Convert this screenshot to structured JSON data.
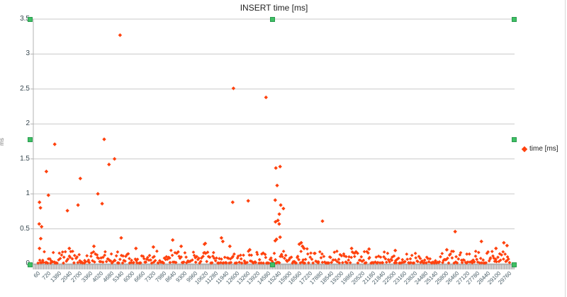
{
  "chart": {
    "selection_handle_color": "#3fc064",
    "grid_color": "#c9c9c9",
    "axis_color": "#b3b3b3"
  },
  "chart_data": {
    "type": "scatter",
    "title": "INSERT time [ms]",
    "xlabel": "",
    "ylabel": "ms",
    "series_name": "time [ms]",
    "marker": "diamond",
    "marker_color": "#ff420e",
    "legend_position": "right",
    "grid": "horizontal",
    "ylim": [
      0,
      3.5
    ],
    "x_range": [
      60,
      29760
    ],
    "y_tick_labels": [
      "3.5",
      "3",
      "2.5",
      "2",
      "1.5",
      "1",
      "0.5",
      "0"
    ],
    "x_tick_labels": [
      "60",
      "720",
      "1380",
      "2040",
      "2700",
      "3360",
      "4020",
      "4680",
      "5340",
      "6000",
      "6660",
      "7320",
      "7980",
      "8640",
      "9300",
      "9960",
      "10620",
      "11280",
      "11940",
      "12600",
      "13260",
      "13920",
      "14580",
      "15240",
      "15900",
      "16560",
      "17220",
      "17880",
      "18540",
      "19200",
      "19860",
      "20520",
      "21180",
      "21840",
      "22500",
      "23160",
      "23820",
      "24480",
      "25140",
      "25800",
      "26460",
      "27120",
      "27780",
      "28440",
      "29100",
      "29760"
    ],
    "outliers": [
      [
        5200,
        3.27
      ],
      [
        12350,
        2.51
      ],
      [
        14400,
        2.38
      ],
      [
        4200,
        1.78
      ],
      [
        1080,
        1.71
      ],
      [
        4850,
        1.5
      ],
      [
        4500,
        1.42
      ],
      [
        15290,
        1.39
      ],
      [
        15020,
        1.37
      ],
      [
        550,
        1.32
      ],
      [
        2690,
        1.22
      ],
      [
        15100,
        1.12
      ],
      [
        3800,
        1.0
      ],
      [
        680,
        0.98
      ],
      [
        14980,
        0.91
      ],
      [
        120,
        0.88
      ],
      [
        13280,
        0.9
      ],
      [
        12300,
        0.88
      ],
      [
        4070,
        0.86
      ],
      [
        2550,
        0.84
      ],
      [
        15330,
        0.84
      ],
      [
        180,
        0.8
      ],
      [
        15500,
        0.79
      ],
      [
        1880,
        0.76
      ],
      [
        15240,
        0.71
      ],
      [
        15150,
        0.62
      ],
      [
        17960,
        0.61
      ],
      [
        15000,
        0.6
      ],
      [
        15230,
        0.57
      ],
      [
        100,
        0.57
      ],
      [
        250,
        0.53
      ],
      [
        26330,
        0.46
      ],
      [
        15290,
        0.38
      ],
      [
        15060,
        0.35
      ],
      [
        200,
        0.36
      ],
      [
        5270,
        0.37
      ],
      [
        11590,
        0.37
      ],
      [
        27980,
        0.32
      ],
      [
        11680,
        0.32
      ],
      [
        14980,
        0.33
      ],
      [
        10520,
        0.28
      ],
      [
        9050,
        0.25
      ],
      [
        12120,
        0.25
      ],
      [
        8520,
        0.34
      ],
      [
        10570,
        0.29
      ],
      [
        13375,
        0.2
      ],
      [
        120,
        0.22
      ],
      [
        22550,
        0.19
      ],
      [
        16500,
        0.28
      ],
      [
        16620,
        0.3
      ],
      [
        16700,
        0.25
      ],
      [
        16800,
        0.22
      ],
      [
        29400,
        0.3
      ],
      [
        29600,
        0.26
      ],
      [
        28900,
        0.22
      ],
      [
        25800,
        0.2
      ],
      [
        19800,
        0.22
      ],
      [
        20900,
        0.21
      ],
      [
        6200,
        0.22
      ],
      [
        7300,
        0.24
      ],
      [
        3550,
        0.25
      ],
      [
        2000,
        0.22
      ]
    ],
    "baseline_band": {
      "description": "dense cloud of ~500 samples hugging 0-0.18 ms across the whole x range",
      "count": 480,
      "y_min": 0.01,
      "y_max": 0.18,
      "seed": 7
    }
  }
}
